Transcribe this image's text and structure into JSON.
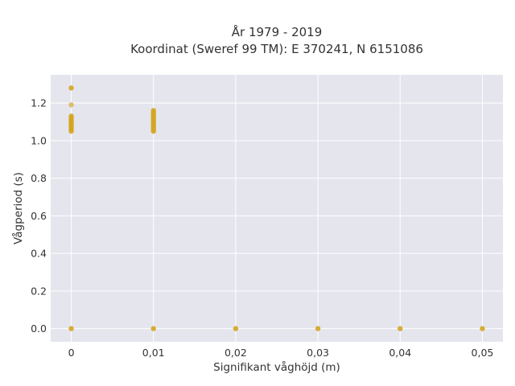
{
  "chart_data": {
    "type": "scatter",
    "title": [
      "År 1979 - 2019",
      "Koordinat (Sweref 99 TM): E 370241, N 6151086"
    ],
    "xlabel": "Signifikant våghöjd (m)",
    "ylabel": "Vågperiod (s)",
    "xlim": [
      -0.0025,
      0.0525
    ],
    "ylim": [
      -0.07,
      1.35
    ],
    "xticks": [
      0,
      0.01,
      0.02,
      0.03,
      0.04,
      0.05
    ],
    "xtick_labels": [
      "0",
      "0,01",
      "0,02",
      "0,03",
      "0,04",
      "0,05"
    ],
    "yticks": [
      0,
      0.2,
      0.4,
      0.6,
      0.8,
      1.0,
      1.2
    ],
    "ytick_labels": [
      "0.0",
      "0.2",
      "0.4",
      "0.6",
      "0.8",
      "1.0",
      "1.2"
    ],
    "grid": true,
    "legend": "none",
    "colors": {
      "plot_bg": "#e5e5ee",
      "grid": "#ffffff",
      "marker": "#d4a520",
      "marker_light": "#dbb85c"
    },
    "series": [
      {
        "points": [
          [
            0,
            1.28
          ],
          [
            0,
            1.19
          ],
          [
            0,
            1.13
          ],
          [
            0,
            1.12
          ],
          [
            0,
            1.11
          ],
          [
            0,
            1.1
          ],
          [
            0,
            1.09
          ],
          [
            0,
            1.08
          ],
          [
            0,
            1.07
          ],
          [
            0,
            1.06
          ],
          [
            0,
            1.05
          ],
          [
            0,
            0.0
          ],
          [
            0.01,
            1.16
          ],
          [
            0.01,
            1.15
          ],
          [
            0.01,
            1.14
          ],
          [
            0.01,
            1.13
          ],
          [
            0.01,
            1.12
          ],
          [
            0.01,
            1.11
          ],
          [
            0.01,
            1.1
          ],
          [
            0.01,
            1.09
          ],
          [
            0.01,
            1.08
          ],
          [
            0.01,
            1.07
          ],
          [
            0.01,
            1.06
          ],
          [
            0.01,
            1.05
          ],
          [
            0.01,
            0.0
          ],
          [
            0.02,
            0.0
          ],
          [
            0.03,
            0.0
          ],
          [
            0.04,
            0.0
          ],
          [
            0.05,
            0.0
          ]
        ]
      }
    ]
  }
}
